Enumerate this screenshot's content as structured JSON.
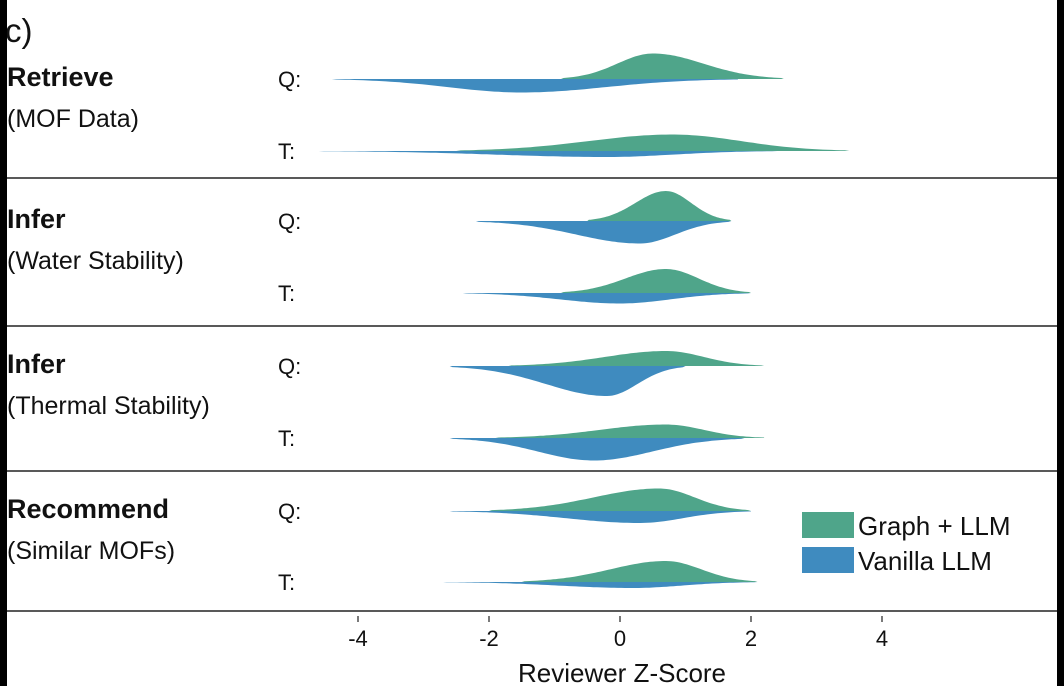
{
  "chart_data": {
    "type": "violin",
    "panel_label": "c)",
    "xlabel": "Reviewer Z-Score",
    "xticks": [
      -4,
      -2,
      0,
      2,
      4
    ],
    "xlim": [
      -4.5,
      6.4
    ],
    "legend": {
      "position": "bottom-right",
      "entries": [
        "Graph + LLM",
        "Vanilla LLM"
      ]
    },
    "colors": {
      "Graph + LLM": "#4fa58a",
      "Vanilla LLM": "#3f8bbf"
    },
    "groups": [
      {
        "title": "Retrieve",
        "subtitle": "(MOF Data)",
        "rows": [
          {
            "label": "Q:",
            "graph_llm": {
              "min": -0.9,
              "max": 2.5,
              "mode": 0.5,
              "peak": 0.85
            },
            "vanilla_llm": {
              "min": -4.4,
              "max": 1.8,
              "mode": -1.5,
              "peak": 0.45
            }
          },
          {
            "label": "T:",
            "graph_llm": {
              "min": -2.5,
              "max": 3.5,
              "mode": 0.8,
              "peak": 0.55
            },
            "vanilla_llm": {
              "min": -4.6,
              "max": 2.4,
              "mode": -0.2,
              "peak": 0.2
            }
          }
        ]
      },
      {
        "title": "Infer",
        "subtitle": "(Water Stability)",
        "rows": [
          {
            "label": "Q:",
            "graph_llm": {
              "min": -0.5,
              "max": 1.7,
              "mode": 0.7,
              "peak": 1.0
            },
            "vanilla_llm": {
              "min": -2.2,
              "max": 1.7,
              "mode": 0.3,
              "peak": 0.75
            }
          },
          {
            "label": "T:",
            "graph_llm": {
              "min": -0.9,
              "max": 2.0,
              "mode": 0.7,
              "peak": 0.8
            },
            "vanilla_llm": {
              "min": -2.4,
              "max": 2.0,
              "mode": 0.0,
              "peak": 0.35
            }
          }
        ]
      },
      {
        "title": "Infer",
        "subtitle": "(Thermal Stability)",
        "rows": [
          {
            "label": "Q:",
            "graph_llm": {
              "min": -1.7,
              "max": 2.2,
              "mode": 0.7,
              "peak": 0.5
            },
            "vanilla_llm": {
              "min": -2.6,
              "max": 1.0,
              "mode": -0.2,
              "peak": 1.0
            }
          },
          {
            "label": "T:",
            "graph_llm": {
              "min": -1.9,
              "max": 2.2,
              "mode": 0.7,
              "peak": 0.45
            },
            "vanilla_llm": {
              "min": -2.6,
              "max": 1.9,
              "mode": -0.4,
              "peak": 0.75
            }
          }
        ]
      },
      {
        "title": "Recommend",
        "subtitle": "(Similar MOFs)",
        "rows": [
          {
            "label": "Q:",
            "graph_llm": {
              "min": -2.0,
              "max": 2.0,
              "mode": 0.6,
              "peak": 0.75
            },
            "vanilla_llm": {
              "min": -2.6,
              "max": 2.0,
              "mode": 0.3,
              "peak": 0.4
            }
          },
          {
            "label": "T:",
            "graph_llm": {
              "min": -1.5,
              "max": 2.1,
              "mode": 0.7,
              "peak": 0.7
            },
            "vanilla_llm": {
              "min": -2.7,
              "max": 2.1,
              "mode": 0.2,
              "peak": 0.2
            }
          }
        ]
      }
    ]
  }
}
